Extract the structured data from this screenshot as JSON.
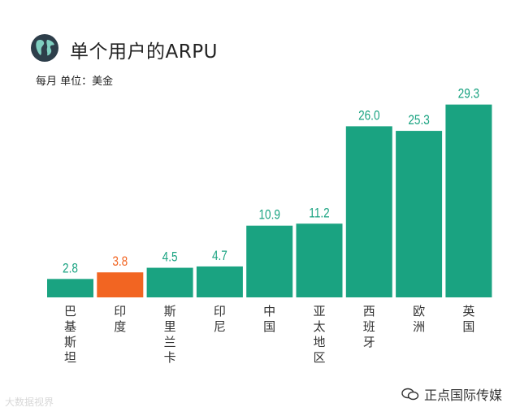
{
  "header": {
    "title": "单个用户的ARPU",
    "subtitle": "每月  单位：美金"
  },
  "colors": {
    "primary": "#1aa381",
    "highlight": "#f26522",
    "globe_bg": "#2d3e4a",
    "globe_land": "#7fcfc0"
  },
  "icons": {
    "globe": "globe-icon",
    "wechat": "wechat-icon"
  },
  "chart_data": {
    "type": "bar",
    "title": "单个用户的ARPU",
    "subtitle": "每月  单位：美金",
    "categories": [
      "巴基斯坦",
      "印度",
      "斯里兰卡",
      "印尼",
      "中国",
      "亚太地区",
      "西班牙",
      "欧洲",
      "英国"
    ],
    "values": [
      2.8,
      3.8,
      4.5,
      4.7,
      10.9,
      11.2,
      26.0,
      25.3,
      29.3
    ],
    "value_labels": [
      "2.8",
      "3.8",
      "4.5",
      "4.7",
      "10.9",
      "11.2",
      "26.0",
      "25.3",
      "29.3"
    ],
    "highlight_index": 1,
    "xlabel": "",
    "ylabel": "美金",
    "ylim": [
      0,
      30
    ],
    "grid": false,
    "legend": "none"
  },
  "watermarks": {
    "left": "大数据视界",
    "right": "正点国际传媒"
  }
}
